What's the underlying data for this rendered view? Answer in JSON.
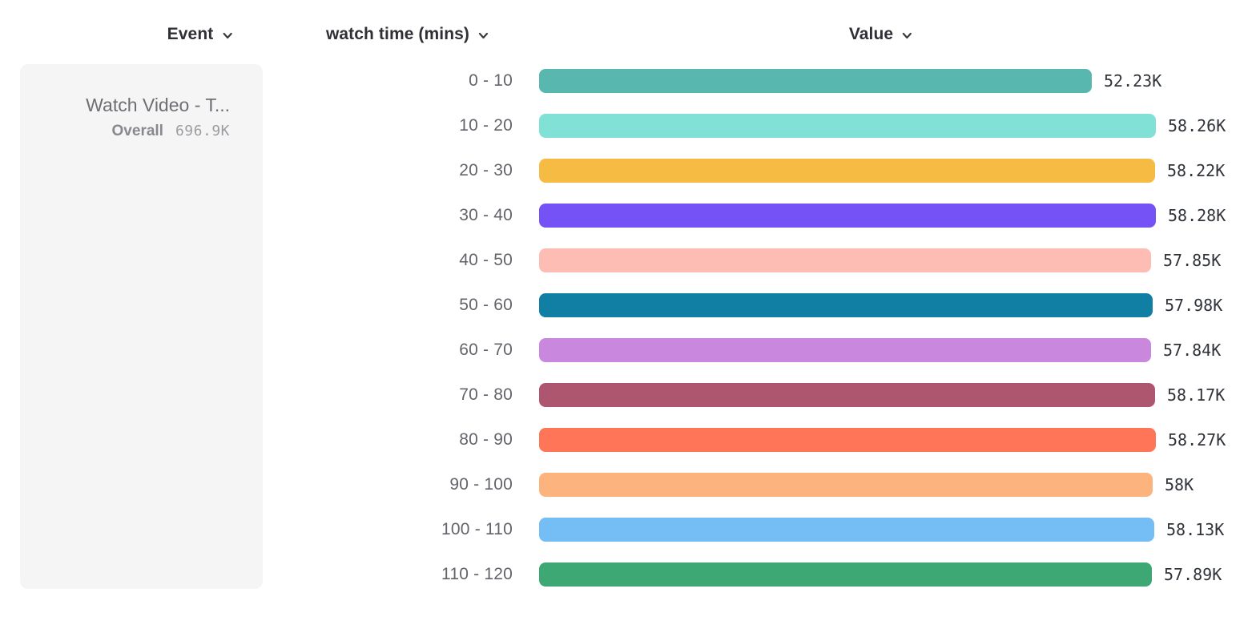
{
  "columns": {
    "event": {
      "label": "Event"
    },
    "breakdown": {
      "label": "watch time (mins)"
    },
    "value": {
      "label": "Value"
    }
  },
  "event_card": {
    "title": "Watch Video - T...",
    "overall_label": "Overall",
    "overall_value": "696.9K"
  },
  "chart_data": {
    "type": "bar",
    "orientation": "horizontal",
    "title": "",
    "xlabel": "Value",
    "ylabel": "watch time (mins)",
    "categories": [
      "0 - 10",
      "10 - 20",
      "20 - 30",
      "30 - 40",
      "40 - 50",
      "50 - 60",
      "60 - 70",
      "70 - 80",
      "80 - 90",
      "90 - 100",
      "100 - 110",
      "110 - 120"
    ],
    "values": [
      52230,
      58260,
      58220,
      58280,
      57850,
      57980,
      57840,
      58170,
      58270,
      58000,
      58130,
      57890
    ],
    "value_labels": [
      "52.23K",
      "58.26K",
      "58.22K",
      "58.28K",
      "57.85K",
      "57.98K",
      "57.84K",
      "58.17K",
      "58.27K",
      "58K",
      "58.13K",
      "57.89K"
    ],
    "bar_colors": [
      "#58b7ae",
      "#82e1d6",
      "#f6bb42",
      "#7452f6",
      "#fdbdb4",
      "#117fa3",
      "#c987de",
      "#ae5670",
      "#ff7557",
      "#fdb37d",
      "#74bdf5",
      "#3da873"
    ],
    "xlim": [
      0,
      58280
    ],
    "grid": false,
    "legend": "event card at left"
  },
  "icons": {
    "chevron_color": "#3a3a40"
  }
}
